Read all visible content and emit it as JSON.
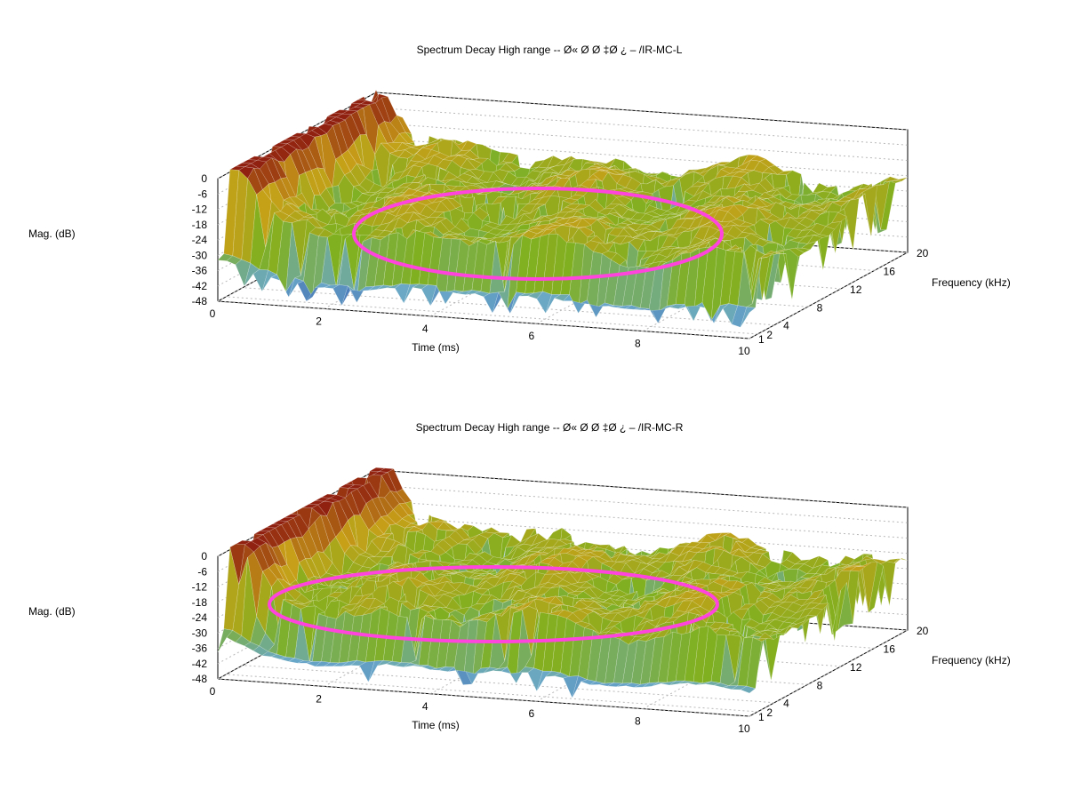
{
  "colors": {
    "surface_low": "#2848a8",
    "surface_mid_low": "#6aa8c8",
    "surface_mid": "#80b020",
    "surface_high": "#c8a018",
    "surface_peak": "#902010",
    "annotation_ellipse": "#ff44dd"
  },
  "chart_data": [
    {
      "type": "surface3d",
      "title": "Spectrum Decay High range -- Ø«  Ø    Ø  ‡Ø  ¿  –  /IR-MC-L",
      "xlabel": "Time (ms)",
      "ylabel": "Frequency (kHz)",
      "zlabel": "Mag. (dB)",
      "x_ticks": [
        "0",
        "2",
        "4",
        "6",
        "8",
        "10"
      ],
      "y_ticks": [
        "1",
        "2",
        "4",
        "8",
        "12",
        "16",
        "20"
      ],
      "z_ticks": [
        "0",
        "-6",
        "-12",
        "-18",
        "-24",
        "-30",
        "-36",
        "-42",
        "-48"
      ],
      "xlim": [
        0,
        10
      ],
      "ylim": [
        1,
        20
      ],
      "zlim": [
        -48,
        0
      ],
      "grid": true,
      "annotation": "ellipse"
    },
    {
      "type": "surface3d",
      "title": "Spectrum Decay High range -- Ø«  Ø    Ø  ‡Ø  ¿  –  /IR-MC-R",
      "xlabel": "Time (ms)",
      "ylabel": "Frequency (kHz)",
      "zlabel": "Mag. (dB)",
      "x_ticks": [
        "0",
        "2",
        "4",
        "6",
        "8",
        "10"
      ],
      "y_ticks": [
        "1",
        "2",
        "4",
        "8",
        "12",
        "16",
        "20"
      ],
      "z_ticks": [
        "0",
        "-6",
        "-12",
        "-18",
        "-24",
        "-30",
        "-36",
        "-42",
        "-48"
      ],
      "xlim": [
        0,
        10
      ],
      "ylim": [
        1,
        20
      ],
      "zlim": [
        -48,
        0
      ],
      "grid": true,
      "annotation": "ellipse"
    }
  ]
}
